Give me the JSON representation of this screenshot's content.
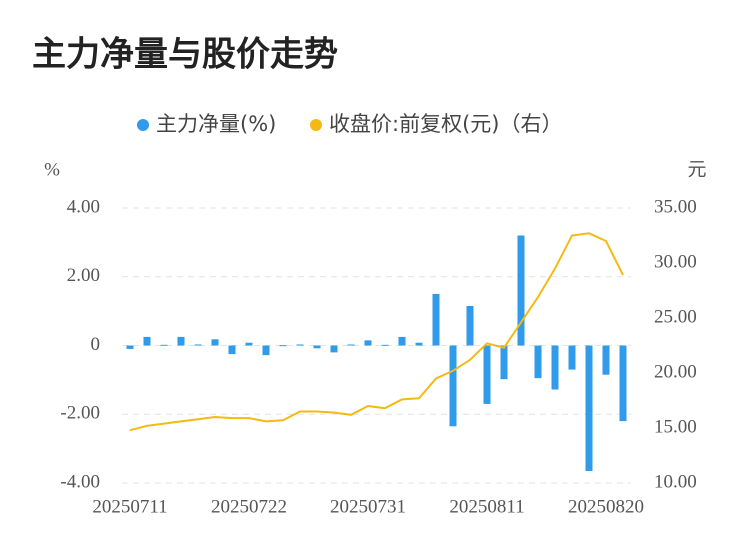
{
  "chart_data": {
    "type": "bar_line",
    "title": "主力净量与股价走势",
    "y_unit": "%",
    "y2_unit": "元",
    "categories": [
      "20250711",
      null,
      null,
      null,
      null,
      null,
      null,
      "20250722",
      null,
      null,
      null,
      null,
      null,
      null,
      "20250731",
      null,
      null,
      null,
      null,
      null,
      null,
      "20250811",
      null,
      null,
      null,
      null,
      null,
      null,
      "20250820",
      null
    ],
    "series": [
      {
        "name": "主力净量(%)",
        "type": "bar",
        "axis": "y",
        "color": "#2f9bea",
        "values": [
          -0.1,
          0.25,
          0.02,
          0.25,
          0.03,
          0.18,
          -0.25,
          0.08,
          -0.28,
          0.01,
          0.03,
          -0.08,
          -0.2,
          0.03,
          0.15,
          0.02,
          0.25,
          0.08,
          1.5,
          -2.35,
          1.15,
          -1.7,
          -0.98,
          3.2,
          -0.95,
          -1.28,
          -0.7,
          -3.65,
          -0.85,
          -2.2
        ]
      },
      {
        "name": "收盘价:前复权(元)（右）",
        "type": "line",
        "axis": "y2",
        "color": "#f5b914",
        "values": [
          14.8,
          15.2,
          15.4,
          15.6,
          15.8,
          16.0,
          15.9,
          15.9,
          15.6,
          15.7,
          16.5,
          16.5,
          16.4,
          16.2,
          17.0,
          16.8,
          17.6,
          17.7,
          19.5,
          20.2,
          21.2,
          22.7,
          22.3,
          24.6,
          26.9,
          29.5,
          32.5,
          32.7,
          32.0,
          28.9
        ]
      }
    ],
    "ylim": [
      -4,
      4
    ],
    "yticks": [
      {
        "value": -4,
        "label": "-4.00"
      },
      {
        "value": -2,
        "label": "-2.00"
      },
      0,
      {
        "value": 2,
        "label": "2.00"
      },
      {
        "value": 4,
        "label": "4.00"
      }
    ],
    "y2lim": [
      10,
      35
    ],
    "y2ticks": [
      {
        "value": 10,
        "label": "10.00"
      },
      {
        "value": 15,
        "label": "15.00"
      },
      {
        "value": 20,
        "label": "20.00"
      },
      {
        "value": 25,
        "label": "25.00"
      },
      {
        "value": 30,
        "label": "30.00"
      },
      {
        "value": 35,
        "label": "35.00"
      }
    ],
    "grid": true,
    "legend": "top"
  }
}
